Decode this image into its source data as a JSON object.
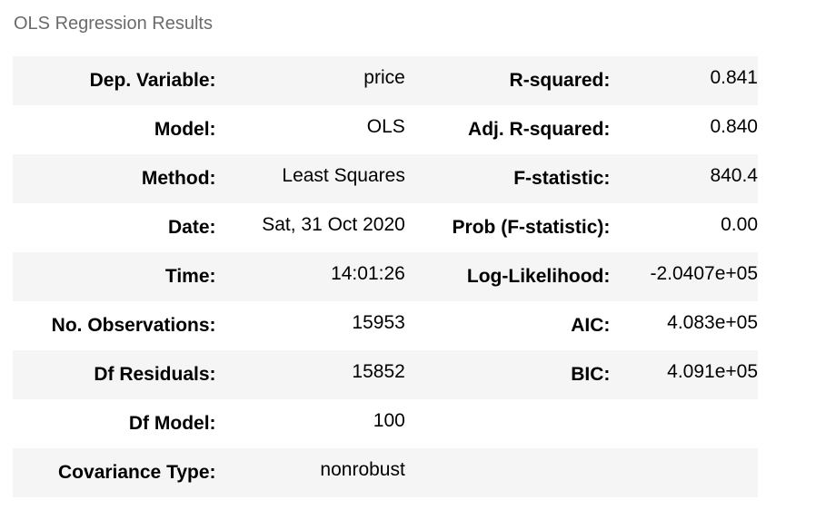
{
  "caption": "OLS Regression Results",
  "rows": [
    {
      "label1": "Dep. Variable:",
      "value1": "price",
      "label2": "R-squared:",
      "value2": "0.841"
    },
    {
      "label1": "Model:",
      "value1": "OLS",
      "label2": "Adj. R-squared:",
      "value2": "0.840"
    },
    {
      "label1": "Method:",
      "value1": "Least Squares",
      "label2": "F-statistic:",
      "value2": "840.4"
    },
    {
      "label1": "Date:",
      "value1": "Sat, 31 Oct 2020",
      "label2": "Prob (F-statistic):",
      "value2": "0.00"
    },
    {
      "label1": "Time:",
      "value1": "14:01:26",
      "label2": "Log-Likelihood:",
      "value2": "-2.0407e+05"
    },
    {
      "label1": "No. Observations:",
      "value1": "15953",
      "label2": "AIC:",
      "value2": "4.083e+05"
    },
    {
      "label1": "Df Residuals:",
      "value1": "15852",
      "label2": "BIC:",
      "value2": "4.091e+05"
    },
    {
      "label1": "Df Model:",
      "value1": "100",
      "label2": "",
      "value2": ""
    },
    {
      "label1": "Covariance Type:",
      "value1": "nonrobust",
      "label2": "",
      "value2": ""
    }
  ],
  "colors": {
    "stripe": "#f5f5f5",
    "caption_text": "#6b6b6b"
  }
}
